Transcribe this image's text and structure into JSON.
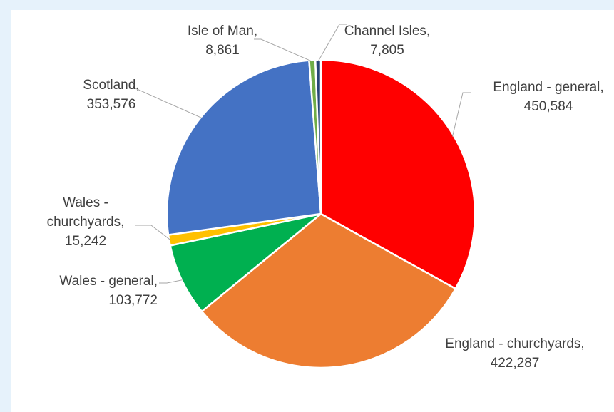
{
  "chart_data": {
    "type": "pie",
    "title": "",
    "slices": [
      {
        "label": "England - general",
        "value": 450584,
        "value_text": "450,584",
        "color": "#ff0000"
      },
      {
        "label": "England - churchyards",
        "value": 422287,
        "value_text": "422,287",
        "color": "#ed7d31"
      },
      {
        "label": "Wales - general",
        "value": 103772,
        "value_text": "103,772",
        "color": "#00b050"
      },
      {
        "label": "Wales - churchyards",
        "value": 15242,
        "value_text": "15,242",
        "color": "#ffc000"
      },
      {
        "label": "Scotland",
        "value": 353576,
        "value_text": "353,576",
        "color": "#4472c4"
      },
      {
        "label": "Isle of Man",
        "value": 8861,
        "value_text": "8,861",
        "color": "#70ad47"
      },
      {
        "label": "Channel Isles",
        "value": 7805,
        "value_text": "7,805",
        "color": "#264478"
      }
    ],
    "legend": "none",
    "data_labels": "outside with leader lines"
  }
}
